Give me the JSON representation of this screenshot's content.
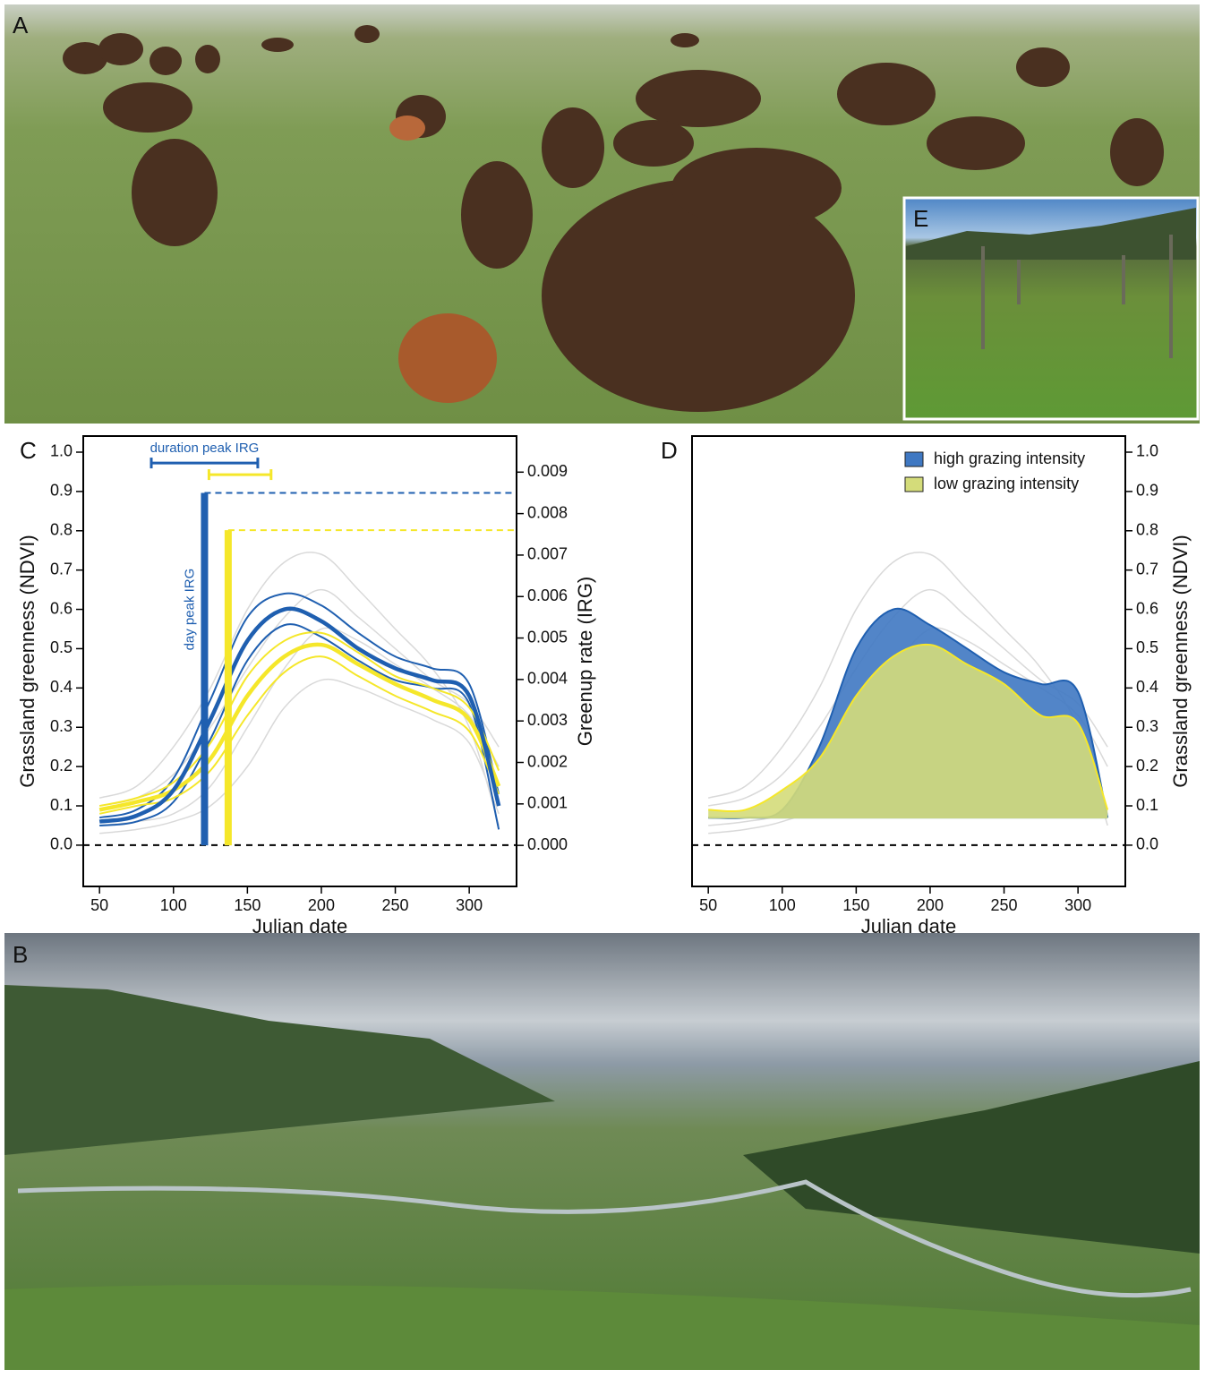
{
  "panel_labels": [
    "A",
    "E",
    "C",
    "D",
    "B"
  ],
  "chart_data": [
    {
      "type": "line",
      "xlabel": "Julian date",
      "ylabel": "Grassland greenness (NDVI)",
      "y2label": "Greenup rate (IRG)",
      "x": [
        50,
        75,
        100,
        125,
        150,
        175,
        200,
        225,
        250,
        275,
        300,
        320
      ],
      "xlim": [
        39,
        332
      ],
      "xticks": [
        50,
        100,
        150,
        200,
        250,
        300
      ],
      "ylim": [
        -0.105,
        1.041
      ],
      "yticks": [
        {
          "value": 0,
          "label": "0.0"
        },
        0.1,
        0.2,
        0.3,
        0.4,
        0.5,
        0.6,
        0.7,
        0.8,
        0.9,
        {
          "value": 1,
          "label": "1.0"
        }
      ],
      "y2lim": [
        -0.00099,
        0.00987
      ],
      "y2ticks": [
        {
          "value": 0,
          "label": "0.000"
        },
        0.001,
        0.002,
        0.003,
        0.004,
        0.005,
        0.006,
        0.007,
        0.008,
        0.009
      ],
      "series": [
        {
          "color": "#d9d9d9",
          "line_width": 1.5,
          "values": [
            0.12,
            0.15,
            0.25,
            0.4,
            0.6,
            0.72,
            0.74,
            0.65,
            0.55,
            0.45,
            0.3,
            0.05
          ]
        },
        {
          "color": "#d9d9d9",
          "line_width": 1.5,
          "values": [
            0.05,
            0.06,
            0.08,
            0.15,
            0.3,
            0.45,
            0.55,
            0.52,
            0.46,
            0.4,
            0.33,
            0.2
          ]
        },
        {
          "color": "#d9d9d9",
          "line_width": 1.5,
          "values": [
            0.1,
            0.12,
            0.18,
            0.3,
            0.45,
            0.58,
            0.65,
            0.58,
            0.5,
            0.42,
            0.36,
            0.25
          ]
        },
        {
          "color": "#d9d9d9",
          "line_width": 1.5,
          "values": [
            0.03,
            0.04,
            0.06,
            0.1,
            0.2,
            0.35,
            0.42,
            0.4,
            0.36,
            0.32,
            0.26,
            0.08
          ]
        },
        {
          "color": "#1f5fb0",
          "line_width": 2,
          "values": [
            0.07,
            0.09,
            0.17,
            0.37,
            0.58,
            0.64,
            0.61,
            0.54,
            0.48,
            0.45,
            0.41,
            0.13
          ]
        },
        {
          "color": "#1f5fb0",
          "line_width": 2,
          "values": [
            0.05,
            0.06,
            0.11,
            0.27,
            0.47,
            0.56,
            0.53,
            0.47,
            0.42,
            0.4,
            0.36,
            0.04
          ]
        },
        {
          "color": "#f5e72a",
          "line_width": 2,
          "values": [
            0.1,
            0.12,
            0.16,
            0.26,
            0.43,
            0.52,
            0.54,
            0.49,
            0.43,
            0.4,
            0.35,
            0.19
          ]
        },
        {
          "color": "#f5e72a",
          "line_width": 2,
          "values": [
            0.08,
            0.1,
            0.12,
            0.19,
            0.33,
            0.44,
            0.48,
            0.43,
            0.38,
            0.34,
            0.29,
            0.13
          ]
        },
        {
          "color": "#f5e72a",
          "line_width": 4.5,
          "values": [
            0.09,
            0.11,
            0.14,
            0.22,
            0.38,
            0.48,
            0.51,
            0.46,
            0.41,
            0.37,
            0.32,
            0.15
          ]
        },
        {
          "color": "#1f5fb0",
          "line_width": 4.5,
          "values": [
            0.06,
            0.075,
            0.14,
            0.32,
            0.52,
            0.6,
            0.57,
            0.5,
            0.45,
            0.42,
            0.38,
            0.1
          ]
        }
      ],
      "irg_peaks": [
        {
          "color": "#1f5fb0",
          "day": 121,
          "value": 0.0085,
          "duration": [
            85,
            157
          ],
          "duration_level": 0.00922
        },
        {
          "color": "#f5e72a",
          "day": 137,
          "value": 0.0076,
          "duration": [
            124,
            166
          ],
          "duration_level": 0.00894
        }
      ],
      "annotations": [
        "duration peak IRG",
        "day peak IRG"
      ],
      "zero_line": 0
    },
    {
      "type": "area",
      "xlabel": "Julian date",
      "ylabel": "Grassland greenness (NDVI)",
      "y_axis_side": "right",
      "x": [
        50,
        75,
        100,
        125,
        150,
        175,
        200,
        225,
        250,
        275,
        300,
        320
      ],
      "xlim": [
        39,
        332
      ],
      "xticks": [
        50,
        100,
        150,
        200,
        250,
        300
      ],
      "ylim": [
        -0.105,
        1.041
      ],
      "yticks": [
        {
          "value": 0,
          "label": "0.0"
        },
        0.1,
        0.2,
        0.3,
        0.4,
        0.5,
        0.6,
        0.7,
        0.8,
        0.9,
        {
          "value": 1,
          "label": "1.0"
        }
      ],
      "fill_base": 0.068,
      "legend": "top-right",
      "background_series": [
        {
          "color": "#d9d9d9",
          "values": [
            0.12,
            0.15,
            0.25,
            0.4,
            0.6,
            0.72,
            0.74,
            0.65,
            0.55,
            0.45,
            0.3,
            0.05
          ]
        },
        {
          "color": "#d9d9d9",
          "values": [
            0.05,
            0.06,
            0.08,
            0.15,
            0.3,
            0.45,
            0.55,
            0.52,
            0.46,
            0.4,
            0.33,
            0.2
          ]
        },
        {
          "color": "#d9d9d9",
          "values": [
            0.1,
            0.12,
            0.18,
            0.3,
            0.45,
            0.58,
            0.65,
            0.58,
            0.5,
            0.42,
            0.36,
            0.25
          ]
        },
        {
          "color": "#d9d9d9",
          "values": [
            0.03,
            0.04,
            0.06,
            0.1,
            0.2,
            0.35,
            0.42,
            0.4,
            0.36,
            0.32,
            0.26,
            0.08
          ]
        }
      ],
      "series": [
        {
          "name": "high grazing intensity",
          "color": "#1f5fb0",
          "fill": "#3f78c2",
          "values": [
            0.07,
            0.07,
            0.09,
            0.25,
            0.5,
            0.6,
            0.56,
            0.5,
            0.44,
            0.41,
            0.39,
            0.07
          ]
        },
        {
          "name": "low grazing intensity",
          "color": "#f5e72a",
          "fill": "#d4dc7a",
          "values": [
            0.09,
            0.09,
            0.14,
            0.22,
            0.38,
            0.48,
            0.51,
            0.46,
            0.41,
            0.33,
            0.31,
            0.09
          ]
        }
      ],
      "zero_line": 0
    }
  ]
}
